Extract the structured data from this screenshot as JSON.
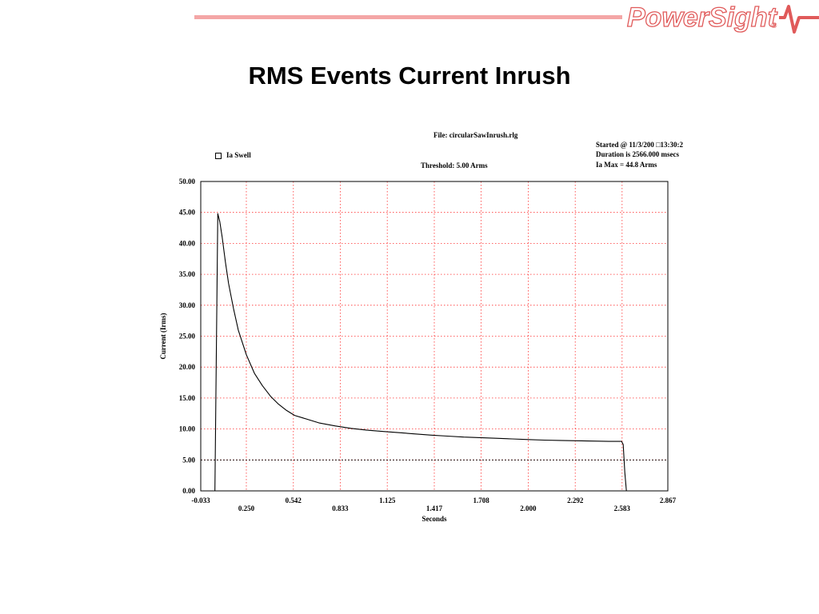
{
  "slide": {
    "title": "RMS Events Current Inrush",
    "brand": "PowerSight"
  },
  "colors": {
    "header_rule": "#f4a6a6",
    "brand": "#e05a5a",
    "grid": "#ff3030",
    "threshold": "#000000",
    "trace": "#000000"
  },
  "chart_header": {
    "file": "File: circularSawInrush.rlg",
    "started": "Started @ 11/3/200 □13:30:2",
    "duration": "Duration is 2566.000 msecs",
    "max": "Ia Max = 44.8 Arms",
    "threshold": "Threshold: 5.00 Arms",
    "legend": "Ia Swell"
  },
  "chart_data": {
    "type": "line",
    "title": "",
    "xlabel": "Seconds",
    "ylabel": "Current (Irms)",
    "xlim": [
      -0.033,
      2.867
    ],
    "ylim": [
      0,
      50
    ],
    "grid": true,
    "legend_position": "top-left",
    "x_ticks_upper": [
      "-0.033",
      "0.542",
      "1.125",
      "1.708",
      "2.292",
      "2.867"
    ],
    "x_ticks_lower": [
      "0.250",
      "0.833",
      "1.417",
      "2.000",
      "2.583"
    ],
    "x_tick_values": [
      -0.033,
      0.25,
      0.542,
      0.833,
      1.125,
      1.417,
      1.708,
      2.0,
      2.292,
      2.583,
      2.867
    ],
    "y_ticks": [
      "0.00",
      "5.00",
      "10.00",
      "15.00",
      "20.00",
      "25.00",
      "30.00",
      "35.00",
      "40.00",
      "45.00",
      "50.00"
    ],
    "y_tick_values": [
      0,
      5,
      10,
      15,
      20,
      25,
      30,
      35,
      40,
      45,
      50
    ],
    "threshold": 5.0,
    "series": [
      {
        "name": "Ia Swell",
        "x": [
          0.055,
          0.073,
          0.085,
          0.1,
          0.12,
          0.14,
          0.17,
          0.2,
          0.25,
          0.3,
          0.35,
          0.4,
          0.45,
          0.5,
          0.55,
          0.6,
          0.7,
          0.8,
          0.9,
          1.0,
          1.1,
          1.2,
          1.3,
          1.4,
          1.5,
          1.6,
          1.7,
          1.8,
          1.9,
          2.0,
          2.1,
          2.2,
          2.3,
          2.4,
          2.5,
          2.55,
          2.58,
          2.59,
          2.6,
          2.61
        ],
        "y": [
          0.0,
          44.8,
          43.5,
          41.0,
          37.0,
          33.5,
          29.5,
          26.0,
          22.0,
          19.0,
          17.0,
          15.3,
          14.0,
          13.0,
          12.2,
          11.8,
          11.0,
          10.5,
          10.1,
          9.8,
          9.6,
          9.4,
          9.2,
          9.0,
          8.85,
          8.7,
          8.6,
          8.5,
          8.4,
          8.3,
          8.2,
          8.15,
          8.1,
          8.05,
          8.0,
          8.0,
          8.0,
          7.5,
          3.0,
          0.0
        ]
      }
    ]
  }
}
